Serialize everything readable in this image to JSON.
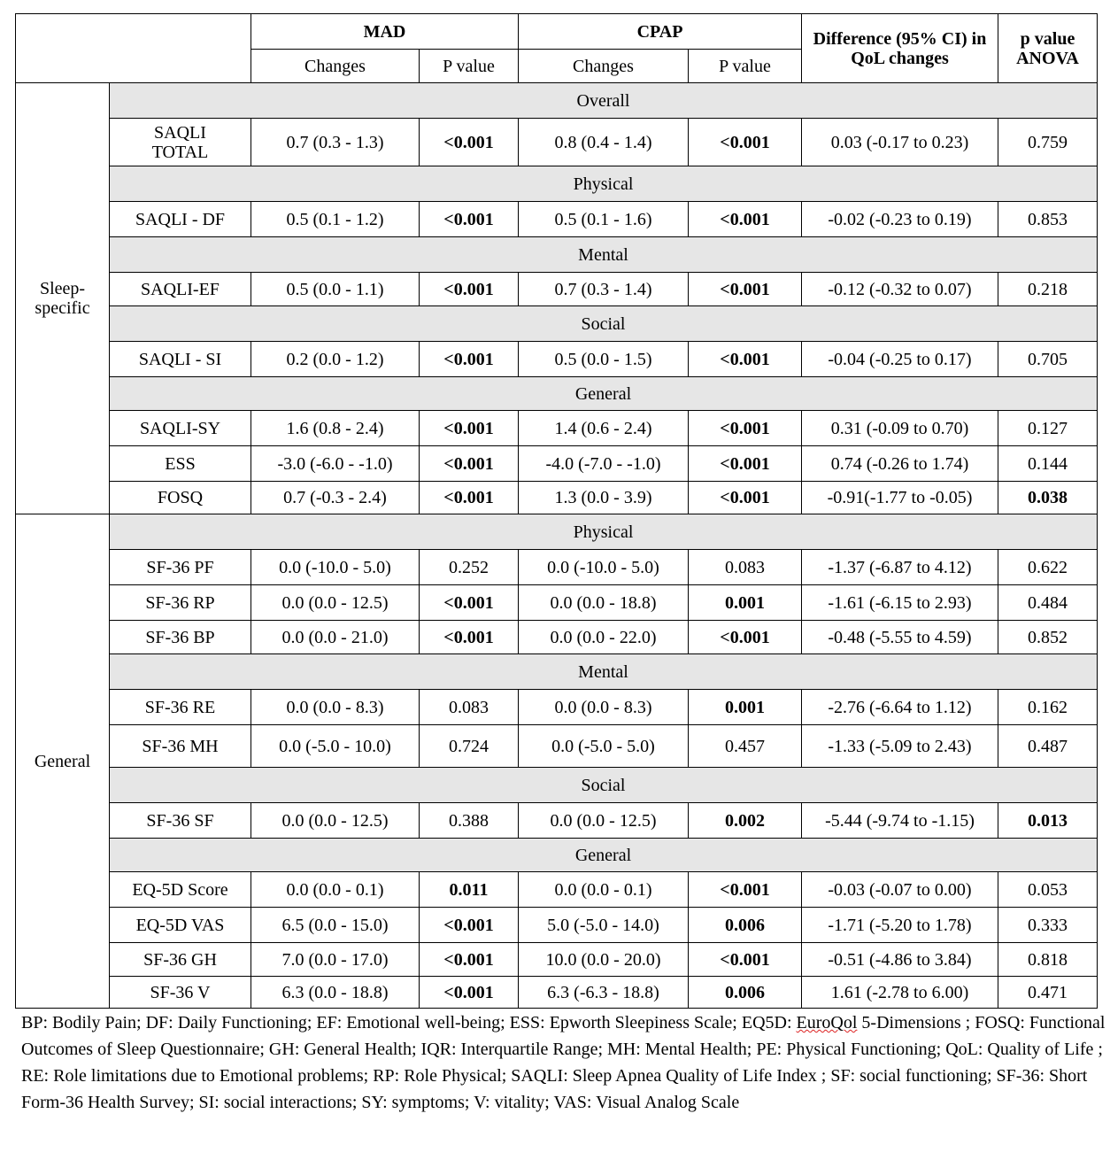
{
  "header": {
    "mad": "MAD",
    "cpap": "CPAP",
    "changes": "Changes",
    "p_value": "P value",
    "difference": "Difference (95% CI) in QoL changes",
    "anova": "p value ANOVA"
  },
  "sections": [
    {
      "label": "Sleep-specific",
      "groups": [
        {
          "name": "Overall",
          "rows": [
            {
              "measure": "SAQLI TOTAL",
              "mad_change": "0.7 (0.3 - 1.3)",
              "mad_p": "<0.001",
              "mad_p_bold": true,
              "cpap_change": "0.8 (0.4 - 1.4)",
              "cpap_p": "<0.001",
              "cpap_p_bold": true,
              "diff": "0.03 (-0.17 to 0.23)",
              "anova": "0.759",
              "anova_bold": false
            }
          ]
        },
        {
          "name": "Physical",
          "rows": [
            {
              "measure": "SAQLI - DF",
              "mad_change": "0.5 (0.1 - 1.2)",
              "mad_p": "<0.001",
              "mad_p_bold": true,
              "cpap_change": "0.5 (0.1 - 1.6)",
              "cpap_p": "<0.001",
              "cpap_p_bold": true,
              "diff": "-0.02 (-0.23 to 0.19)",
              "anova": "0.853",
              "anova_bold": false
            }
          ]
        },
        {
          "name": "Mental",
          "rows": [
            {
              "measure": "SAQLI-EF",
              "mad_change": "0.5 (0.0 - 1.1)",
              "mad_p": "<0.001",
              "mad_p_bold": true,
              "cpap_change": "0.7 (0.3 - 1.4)",
              "cpap_p": "<0.001",
              "cpap_p_bold": true,
              "diff": "-0.12 (-0.32 to 0.07)",
              "anova": "0.218",
              "anova_bold": false
            }
          ]
        },
        {
          "name": "Social",
          "rows": [
            {
              "measure": "SAQLI - SI",
              "mad_change": "0.2 (0.0 - 1.2)",
              "mad_p": "<0.001",
              "mad_p_bold": true,
              "cpap_change": "0.5 (0.0 - 1.5)",
              "cpap_p": "<0.001",
              "cpap_p_bold": true,
              "diff": "-0.04 (-0.25 to 0.17)",
              "anova": "0.705",
              "anova_bold": false
            }
          ]
        },
        {
          "name": "General",
          "rows": [
            {
              "measure": "SAQLI-SY",
              "mad_change": "1.6 (0.8 - 2.4)",
              "mad_p": "<0.001",
              "mad_p_bold": true,
              "cpap_change": "1.4 (0.6 - 2.4)",
              "cpap_p": "<0.001",
              "cpap_p_bold": true,
              "diff": "0.31 (-0.09 to 0.70)",
              "anova": "0.127",
              "anova_bold": false
            },
            {
              "measure": "ESS",
              "mad_change": "-3.0 (-6.0 - -1.0)",
              "mad_p": "<0.001",
              "mad_p_bold": true,
              "cpap_change": "-4.0 (-7.0 - -1.0)",
              "cpap_p": "<0.001",
              "cpap_p_bold": true,
              "diff": "0.74 (-0.26 to 1.74)",
              "anova": "0.144",
              "anova_bold": false
            },
            {
              "measure": "FOSQ",
              "mad_change": "0.7 (-0.3 - 2.4)",
              "mad_p": "<0.001",
              "mad_p_bold": true,
              "cpap_change": "1.3 (0.0 - 3.9)",
              "cpap_p": "<0.001",
              "cpap_p_bold": true,
              "diff": "-0.91(-1.77 to -0.05)",
              "anova": "0.038",
              "anova_bold": true
            }
          ]
        }
      ]
    },
    {
      "label": "General",
      "groups": [
        {
          "name": "Physical",
          "rows": [
            {
              "measure": "SF-36 PF",
              "mad_change": "0.0 (-10.0 - 5.0)",
              "mad_p": "0.252",
              "mad_p_bold": false,
              "cpap_change": "0.0 (-10.0 - 5.0)",
              "cpap_p": "0.083",
              "cpap_p_bold": false,
              "diff": "-1.37 (-6.87 to 4.12)",
              "anova": "0.622",
              "anova_bold": false
            },
            {
              "measure": "SF-36 RP",
              "mad_change": "0.0 (0.0 - 12.5)",
              "mad_p": "<0.001",
              "mad_p_bold": true,
              "cpap_change": "0.0 (0.0 - 18.8)",
              "cpap_p": "0.001",
              "cpap_p_bold": true,
              "diff": "-1.61 (-6.15 to 2.93)",
              "anova": "0.484",
              "anova_bold": false
            },
            {
              "measure": "SF-36 BP",
              "mad_change": "0.0 (0.0 - 21.0)",
              "mad_p": "<0.001",
              "mad_p_bold": true,
              "cpap_change": "0.0 (0.0 - 22.0)",
              "cpap_p": "<0.001",
              "cpap_p_bold": true,
              "diff": "-0.48 (-5.55 to 4.59)",
              "anova": "0.852",
              "anova_bold": false
            }
          ]
        },
        {
          "name": "Mental",
          "rows": [
            {
              "measure": "SF-36 RE",
              "mad_change": "0.0 (0.0 - 8.3)",
              "mad_p": "0.083",
              "mad_p_bold": false,
              "cpap_change": "0.0 (0.0 - 8.3)",
              "cpap_p": "0.001",
              "cpap_p_bold": true,
              "diff": "-2.76 (-6.64 to 1.12)",
              "anova": "0.162",
              "anova_bold": false
            },
            {
              "measure": "SF-36 MH",
              "mad_change": "0.0 (-5.0 - 10.0)",
              "mad_p": "0.724",
              "mad_p_bold": false,
              "cpap_change": "0.0 (-5.0 - 5.0)",
              "cpap_p": "0.457",
              "cpap_p_bold": false,
              "diff": "-1.33 (-5.09 to 2.43)",
              "anova": "0.487",
              "anova_bold": false
            }
          ]
        },
        {
          "name": "Social",
          "rows": [
            {
              "measure": "SF-36 SF",
              "mad_change": "0.0 (0.0 - 12.5)",
              "mad_p": "0.388",
              "mad_p_bold": false,
              "cpap_change": "0.0 (0.0 - 12.5)",
              "cpap_p": "0.002",
              "cpap_p_bold": true,
              "diff": "-5.44 (-9.74 to -1.15)",
              "anova": "0.013",
              "anova_bold": true
            }
          ]
        },
        {
          "name": "General",
          "rows": [
            {
              "measure": "EQ-5D Score",
              "mad_change": "0.0 (0.0 - 0.1)",
              "mad_p": "0.011",
              "mad_p_bold": true,
              "cpap_change": "0.0 (0.0 - 0.1)",
              "cpap_p": "<0.001",
              "cpap_p_bold": true,
              "diff": "-0.03 (-0.07 to 0.00)",
              "anova": "0.053",
              "anova_bold": false
            },
            {
              "measure": "EQ-5D VAS",
              "mad_change": "6.5 (0.0 - 15.0)",
              "mad_p": "<0.001",
              "mad_p_bold": true,
              "cpap_change": "5.0 (-5.0 - 14.0)",
              "cpap_p": "0.006",
              "cpap_p_bold": true,
              "diff": "-1.71 (-5.20 to 1.78)",
              "anova": "0.333",
              "anova_bold": false
            },
            {
              "measure": "SF-36 GH",
              "mad_change": "7.0 (0.0 - 17.0)",
              "mad_p": "<0.001",
              "mad_p_bold": true,
              "cpap_change": "10.0 (0.0 - 20.0)",
              "cpap_p": "<0.001",
              "cpap_p_bold": true,
              "diff": "-0.51 (-4.86 to 3.84)",
              "anova": "0.818",
              "anova_bold": false
            },
            {
              "measure": "SF-36 V",
              "mad_change": "6.3 (0.0 - 18.8)",
              "mad_p": "<0.001",
              "mad_p_bold": true,
              "cpap_change": "6.3 (-6.3 - 18.8)",
              "cpap_p": "0.006",
              "cpap_p_bold": true,
              "diff": "1.61 (-2.78 to 6.00)",
              "anova": "0.471",
              "anova_bold": false
            }
          ]
        }
      ]
    }
  ],
  "footnote": {
    "before": "BP: Bodily Pain; DF: Daily Functioning; EF: Emotional well-being; ESS: Epworth Sleepiness Scale; EQ5D: ",
    "marked": "EuroQol",
    "after": " 5-Dimensions ; FOSQ: Functional Outcomes of Sleep Questionnaire; GH: General Health; IQR: Interquartile Range; MH: Mental Health; PE: Physical Functioning; QoL: Quality of Life ; RE: Role limitations due to Emotional problems; RP: Role Physical; SAQLI: Sleep Apnea Quality of Life Index ; SF: social functioning; SF-36: Short Form-36 Health Survey; SI: social interactions; SY: symptoms; V: vitality; VAS: Visual Analog Scale"
  }
}
